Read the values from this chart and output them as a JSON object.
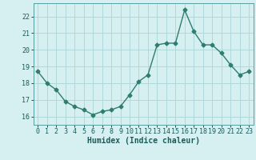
{
  "x": [
    0,
    1,
    2,
    3,
    4,
    5,
    6,
    7,
    8,
    9,
    10,
    11,
    12,
    13,
    14,
    15,
    16,
    17,
    18,
    19,
    20,
    21,
    22,
    23
  ],
  "y": [
    18.7,
    18.0,
    17.6,
    16.9,
    16.6,
    16.4,
    16.1,
    16.3,
    16.4,
    16.6,
    17.3,
    18.1,
    18.5,
    20.3,
    20.4,
    20.4,
    22.4,
    21.1,
    20.3,
    20.3,
    19.8,
    19.1,
    18.5,
    18.7
  ],
  "line_color": "#2e7d6e",
  "marker": "D",
  "marker_size": 2.5,
  "bg_color": "#d6eff0",
  "grid_color": "#b0d8da",
  "xlabel": "Humidex (Indice chaleur)",
  "ylim": [
    15.5,
    22.8
  ],
  "yticks": [
    16,
    17,
    18,
    19,
    20,
    21,
    22
  ],
  "xlim": [
    -0.5,
    23.5
  ],
  "xticks": [
    0,
    1,
    2,
    3,
    4,
    5,
    6,
    7,
    8,
    9,
    10,
    11,
    12,
    13,
    14,
    15,
    16,
    17,
    18,
    19,
    20,
    21,
    22,
    23
  ],
  "xlabel_fontsize": 7,
  "tick_fontsize": 6,
  "line_width": 1.0,
  "spine_color": "#5a9ea0"
}
